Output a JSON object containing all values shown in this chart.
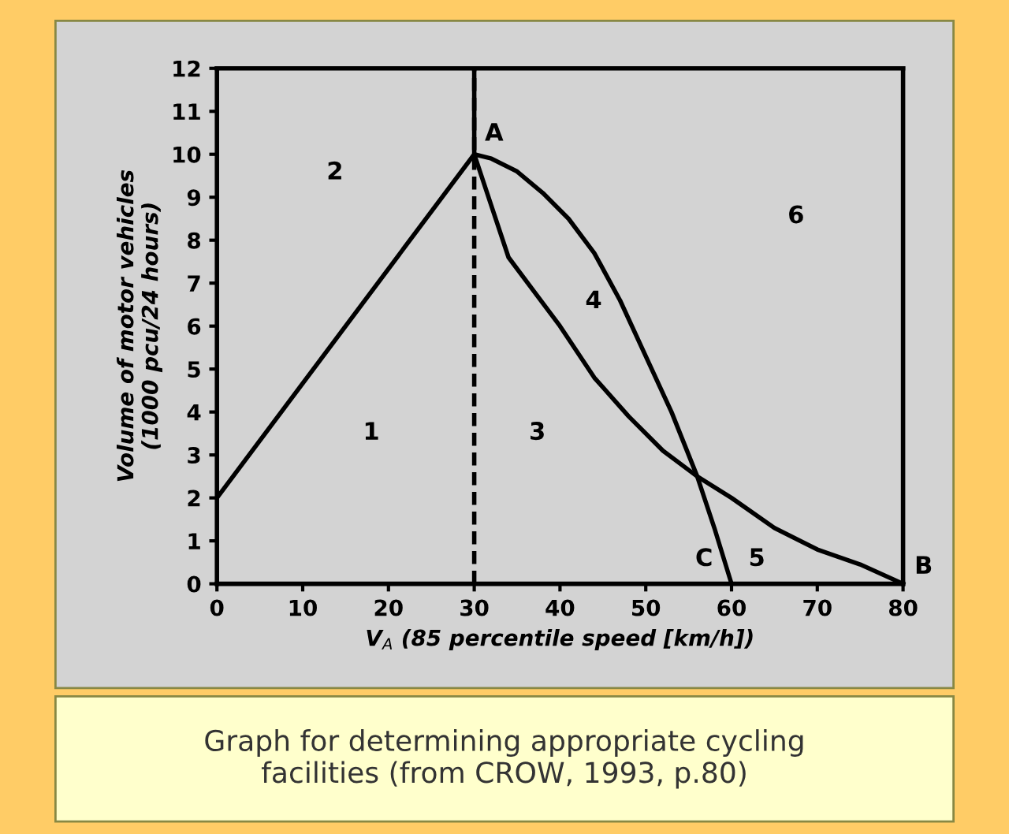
{
  "chart_data": {
    "type": "line",
    "xlabel": "V$_{A}$ (85 percentile speed [km/h])",
    "ylabel": "Volume of motor vehicles\n(1000 pcu/24 hours)",
    "xlim": [
      0,
      80
    ],
    "ylim": [
      0,
      12
    ],
    "xticks": [
      0,
      10,
      20,
      30,
      40,
      50,
      60,
      70,
      80
    ],
    "yticks": [
      0,
      1,
      2,
      3,
      4,
      5,
      6,
      7,
      8,
      9,
      10,
      11,
      12
    ],
    "marker": "none",
    "ref_lines": [
      {
        "axis": "x",
        "value": 30,
        "line_style": "dashed",
        "color": "#000000"
      }
    ],
    "series": [
      {
        "color": "#000000",
        "x": [
          0,
          30,
          32,
          35,
          38,
          41,
          44,
          47,
          50,
          53,
          56,
          58,
          60
        ],
        "values": [
          2,
          10,
          9.9,
          9.6,
          9.1,
          8.5,
          7.7,
          6.6,
          5.3,
          4.0,
          2.5,
          1.3,
          0
        ],
        "line_style": "solid"
      },
      {
        "color": "#000000",
        "x": [
          30,
          30,
          32,
          34,
          37,
          40,
          44,
          48,
          52,
          56,
          60,
          65,
          70,
          75,
          80
        ],
        "values": [
          12,
          10,
          8.8,
          7.6,
          6.8,
          6.0,
          4.8,
          3.9,
          3.1,
          2.5,
          2.0,
          1.3,
          0.8,
          0.45,
          0
        ],
        "line_style": "solid"
      }
    ],
    "annotations": [
      "A",
      "B",
      "C",
      "1",
      "2",
      "3",
      "4",
      "5",
      "6",
      "Graph for determining appropriate cycling\nfacilities (from CROW, 1993, p.80)"
    ]
  }
}
